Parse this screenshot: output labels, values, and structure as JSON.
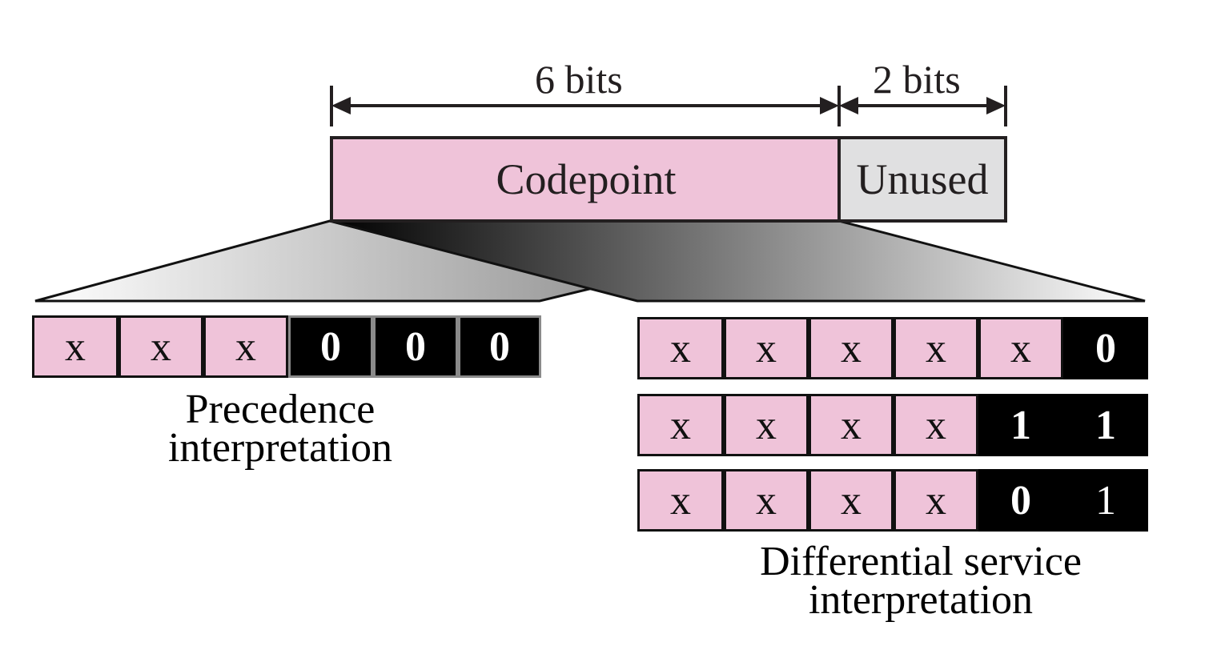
{
  "dimensions": {
    "left_label": "6 bits",
    "right_label": "2 bits"
  },
  "header_fields": {
    "codepoint": "Codepoint",
    "unused": "Unused"
  },
  "colors": {
    "pink": "#efc3d9",
    "gray": "#e0e0e1",
    "black": "#000000",
    "outline": "#231f20"
  },
  "precedence": {
    "cells": [
      "x",
      "x",
      "x",
      "0",
      "0",
      "0"
    ],
    "caption_line1": "Precedence",
    "caption_line2": "interpretation"
  },
  "differential": {
    "rows": [
      [
        "x",
        "x",
        "x",
        "x",
        "x",
        "0"
      ],
      [
        "x",
        "x",
        "x",
        "x",
        "1",
        "1"
      ],
      [
        "x",
        "x",
        "x",
        "x",
        "0",
        "1"
      ]
    ],
    "caption_line1": "Differential service",
    "caption_line2": "interpretation"
  }
}
